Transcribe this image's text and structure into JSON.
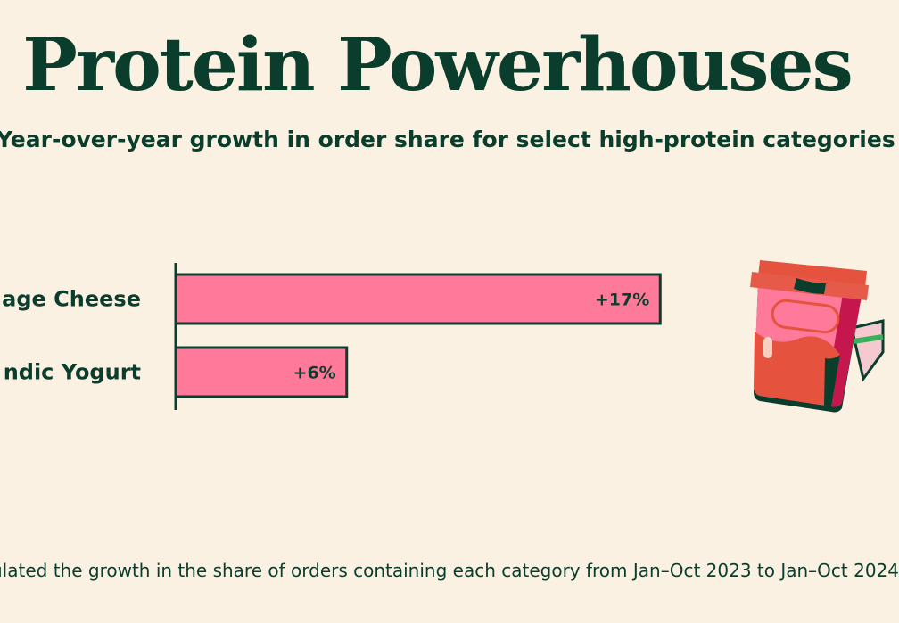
{
  "title": "Protein Powerhouses",
  "subtitle": "Year-over-year growth in order share for select high-protein categories",
  "footnote": "ulated the growth in the share of orders containing each category from Jan–Oct 2023 to Jan–Oct 2024",
  "colors": {
    "background": "#faf1e3",
    "bar": "#ff7a9a",
    "text": "#0b3d2c"
  },
  "icons": [
    "yogurt-cup-illustration"
  ],
  "chart_data": {
    "type": "bar",
    "orientation": "horizontal",
    "categories": [
      "age Cheese",
      "ndic Yogurt"
    ],
    "values": [
      17,
      6
    ],
    "value_labels": [
      "+17%",
      "+6%"
    ],
    "unit": "%",
    "xlim": [
      0,
      23
    ],
    "grid": false
  }
}
